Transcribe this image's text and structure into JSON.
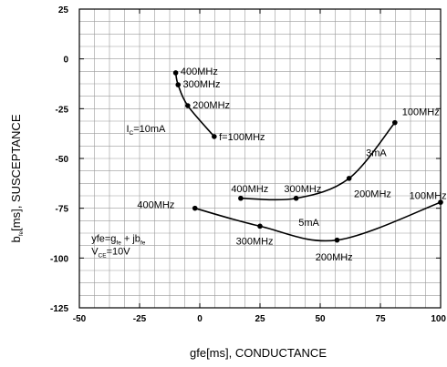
{
  "chart_data": {
    "type": "line",
    "xlabel": "gfe[ms], CONDUCTANCE",
    "ylabel": {
      "prefix": "b",
      "sub": "fe",
      "suffix": "[ms], SUSCEPTANCE"
    },
    "xlim": [
      -50,
      100
    ],
    "ylim": [
      -125,
      25
    ],
    "xticks": [
      -50,
      -25,
      0,
      25,
      50,
      75,
      100
    ],
    "xtick_labels": [
      "-50",
      "-25",
      "0",
      "25",
      "50",
      "75",
      "100"
    ],
    "yticks": [
      25,
      0,
      -25,
      -50,
      -75,
      -100,
      -125
    ],
    "ytick_labels": [
      "25",
      "0",
      "-25",
      "-50",
      "-75",
      "-100",
      "-125"
    ],
    "minor_grid_step": 6.25,
    "grid": true,
    "line_color": "#000000",
    "series": [
      {
        "name": "IC=10mA",
        "points": [
          {
            "x": -10,
            "y": -7
          },
          {
            "x": -9,
            "y": -13
          },
          {
            "x": -5,
            "y": -23.5
          },
          {
            "x": 6,
            "y": -39
          }
        ]
      },
      {
        "name": "3mA",
        "points": [
          {
            "x": 17,
            "y": -70
          },
          {
            "x": 40,
            "y": -70
          },
          {
            "x": 62,
            "y": -60
          },
          {
            "x": 81,
            "y": -32
          }
        ]
      },
      {
        "name": "5mA",
        "points": [
          {
            "x": -2,
            "y": -75
          },
          {
            "x": 25,
            "y": -84
          },
          {
            "x": 57,
            "y": -91
          },
          {
            "x": 100,
            "y": -72
          }
        ]
      }
    ],
    "annotations": [
      {
        "text": "400MHz",
        "x": -8,
        "y": -6
      },
      {
        "text": "300MHz",
        "x": -7,
        "y": -12.5
      },
      {
        "text": "200MHz",
        "x": -3,
        "y": -23
      },
      {
        "text": "f=100MHz",
        "x": 8,
        "y": -39
      },
      {
        "text": "10mA",
        "prefix": "I",
        "sub": "C",
        "prefix_eq": "=",
        "x": -30.5,
        "y": -35
      },
      {
        "text": "400MHz",
        "x": 13,
        "y": -65
      },
      {
        "text": "300MHz",
        "x": 35,
        "y": -65
      },
      {
        "text": "200MHz",
        "x": 64,
        "y": -67.5
      },
      {
        "text": "3mA",
        "x": 69,
        "y": -47
      },
      {
        "text": "100MHz",
        "x": 84,
        "y": -26.5
      },
      {
        "text": "400MHz",
        "x": -26,
        "y": -73
      },
      {
        "text": "300MHz",
        "x": 15,
        "y": -91.5
      },
      {
        "text": "5mA",
        "x": 41,
        "y": -82
      },
      {
        "text": "200MHz",
        "x": 48,
        "y": -99.5
      },
      {
        "text": "100MHz",
        "x": 87,
        "y": -68.5
      }
    ],
    "formula": {
      "line1": {
        "a": "yfe=g",
        "a_sub": "fe",
        "b": " + jb",
        "b_sub": "fe"
      },
      "line2": {
        "a": "V",
        "a_sub": "CE",
        "b": "=10V"
      },
      "x": -45,
      "y": -90
    }
  }
}
